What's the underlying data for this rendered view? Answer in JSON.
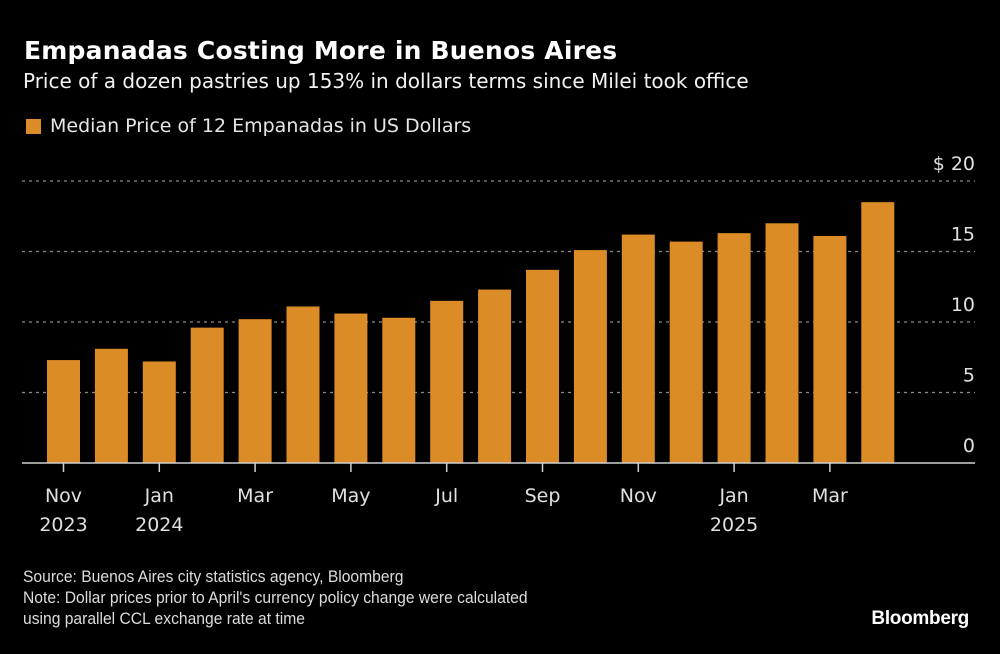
{
  "header": {
    "title": "Empanadas Costing More in Buenos Aires",
    "subtitle": "Price of a dozen pastries up 153% in dollars terms since Milei took office"
  },
  "legend": {
    "label": "Median Price of 12 Empanadas in US Dollars",
    "color": "#dc8c27"
  },
  "footer": {
    "source": "Source: Buenos Aires city statistics agency, Bloomberg",
    "note_line1": "Note: Dollar prices prior to April's currency policy change were calculated",
    "note_line2": "using parallel CCL exchange rate at time",
    "brand": "Bloomberg"
  },
  "chart_data": {
    "type": "bar",
    "title": "Empanadas Costing More in Buenos Aires",
    "subtitle": "Price of a dozen pastries up 153% in dollars terms since Milei took office",
    "xlabel": "",
    "ylabel": "",
    "ylim": [
      0,
      20
    ],
    "y_ticks": [
      0,
      5,
      10,
      15,
      20
    ],
    "y_tick_labels": [
      "0",
      "5",
      "10",
      "15",
      "$ 20"
    ],
    "y_axis_side": "right",
    "grid": true,
    "legend_position": "top-left",
    "categories": [
      "Nov 2023",
      "Dec 2023",
      "Jan 2024",
      "Feb 2024",
      "Mar 2024",
      "Apr 2024",
      "May 2024",
      "Jun 2024",
      "Jul 2024",
      "Aug 2024",
      "Sep 2024",
      "Oct 2024",
      "Nov 2024",
      "Dec 2024",
      "Jan 2025",
      "Feb 2025",
      "Mar 2025",
      "Apr 2025"
    ],
    "x_tick_labels": [
      {
        "index": 0,
        "line1": "Nov",
        "line2": "2023"
      },
      {
        "index": 2,
        "line1": "Jan",
        "line2": "2024"
      },
      {
        "index": 4,
        "line1": "Mar",
        "line2": ""
      },
      {
        "index": 6,
        "line1": "May",
        "line2": ""
      },
      {
        "index": 8,
        "line1": "Jul",
        "line2": ""
      },
      {
        "index": 10,
        "line1": "Sep",
        "line2": ""
      },
      {
        "index": 12,
        "line1": "Nov",
        "line2": ""
      },
      {
        "index": 14,
        "line1": "Jan",
        "line2": "2025"
      },
      {
        "index": 16,
        "line1": "Mar",
        "line2": ""
      }
    ],
    "series": [
      {
        "name": "Median Price of 12 Empanadas in US Dollars",
        "color": "#dc8c27",
        "values": [
          7.3,
          8.1,
          7.2,
          9.6,
          10.2,
          11.1,
          10.6,
          10.3,
          11.5,
          12.3,
          13.7,
          15.1,
          16.2,
          15.7,
          16.3,
          17.0,
          16.1,
          18.5
        ]
      }
    ]
  }
}
